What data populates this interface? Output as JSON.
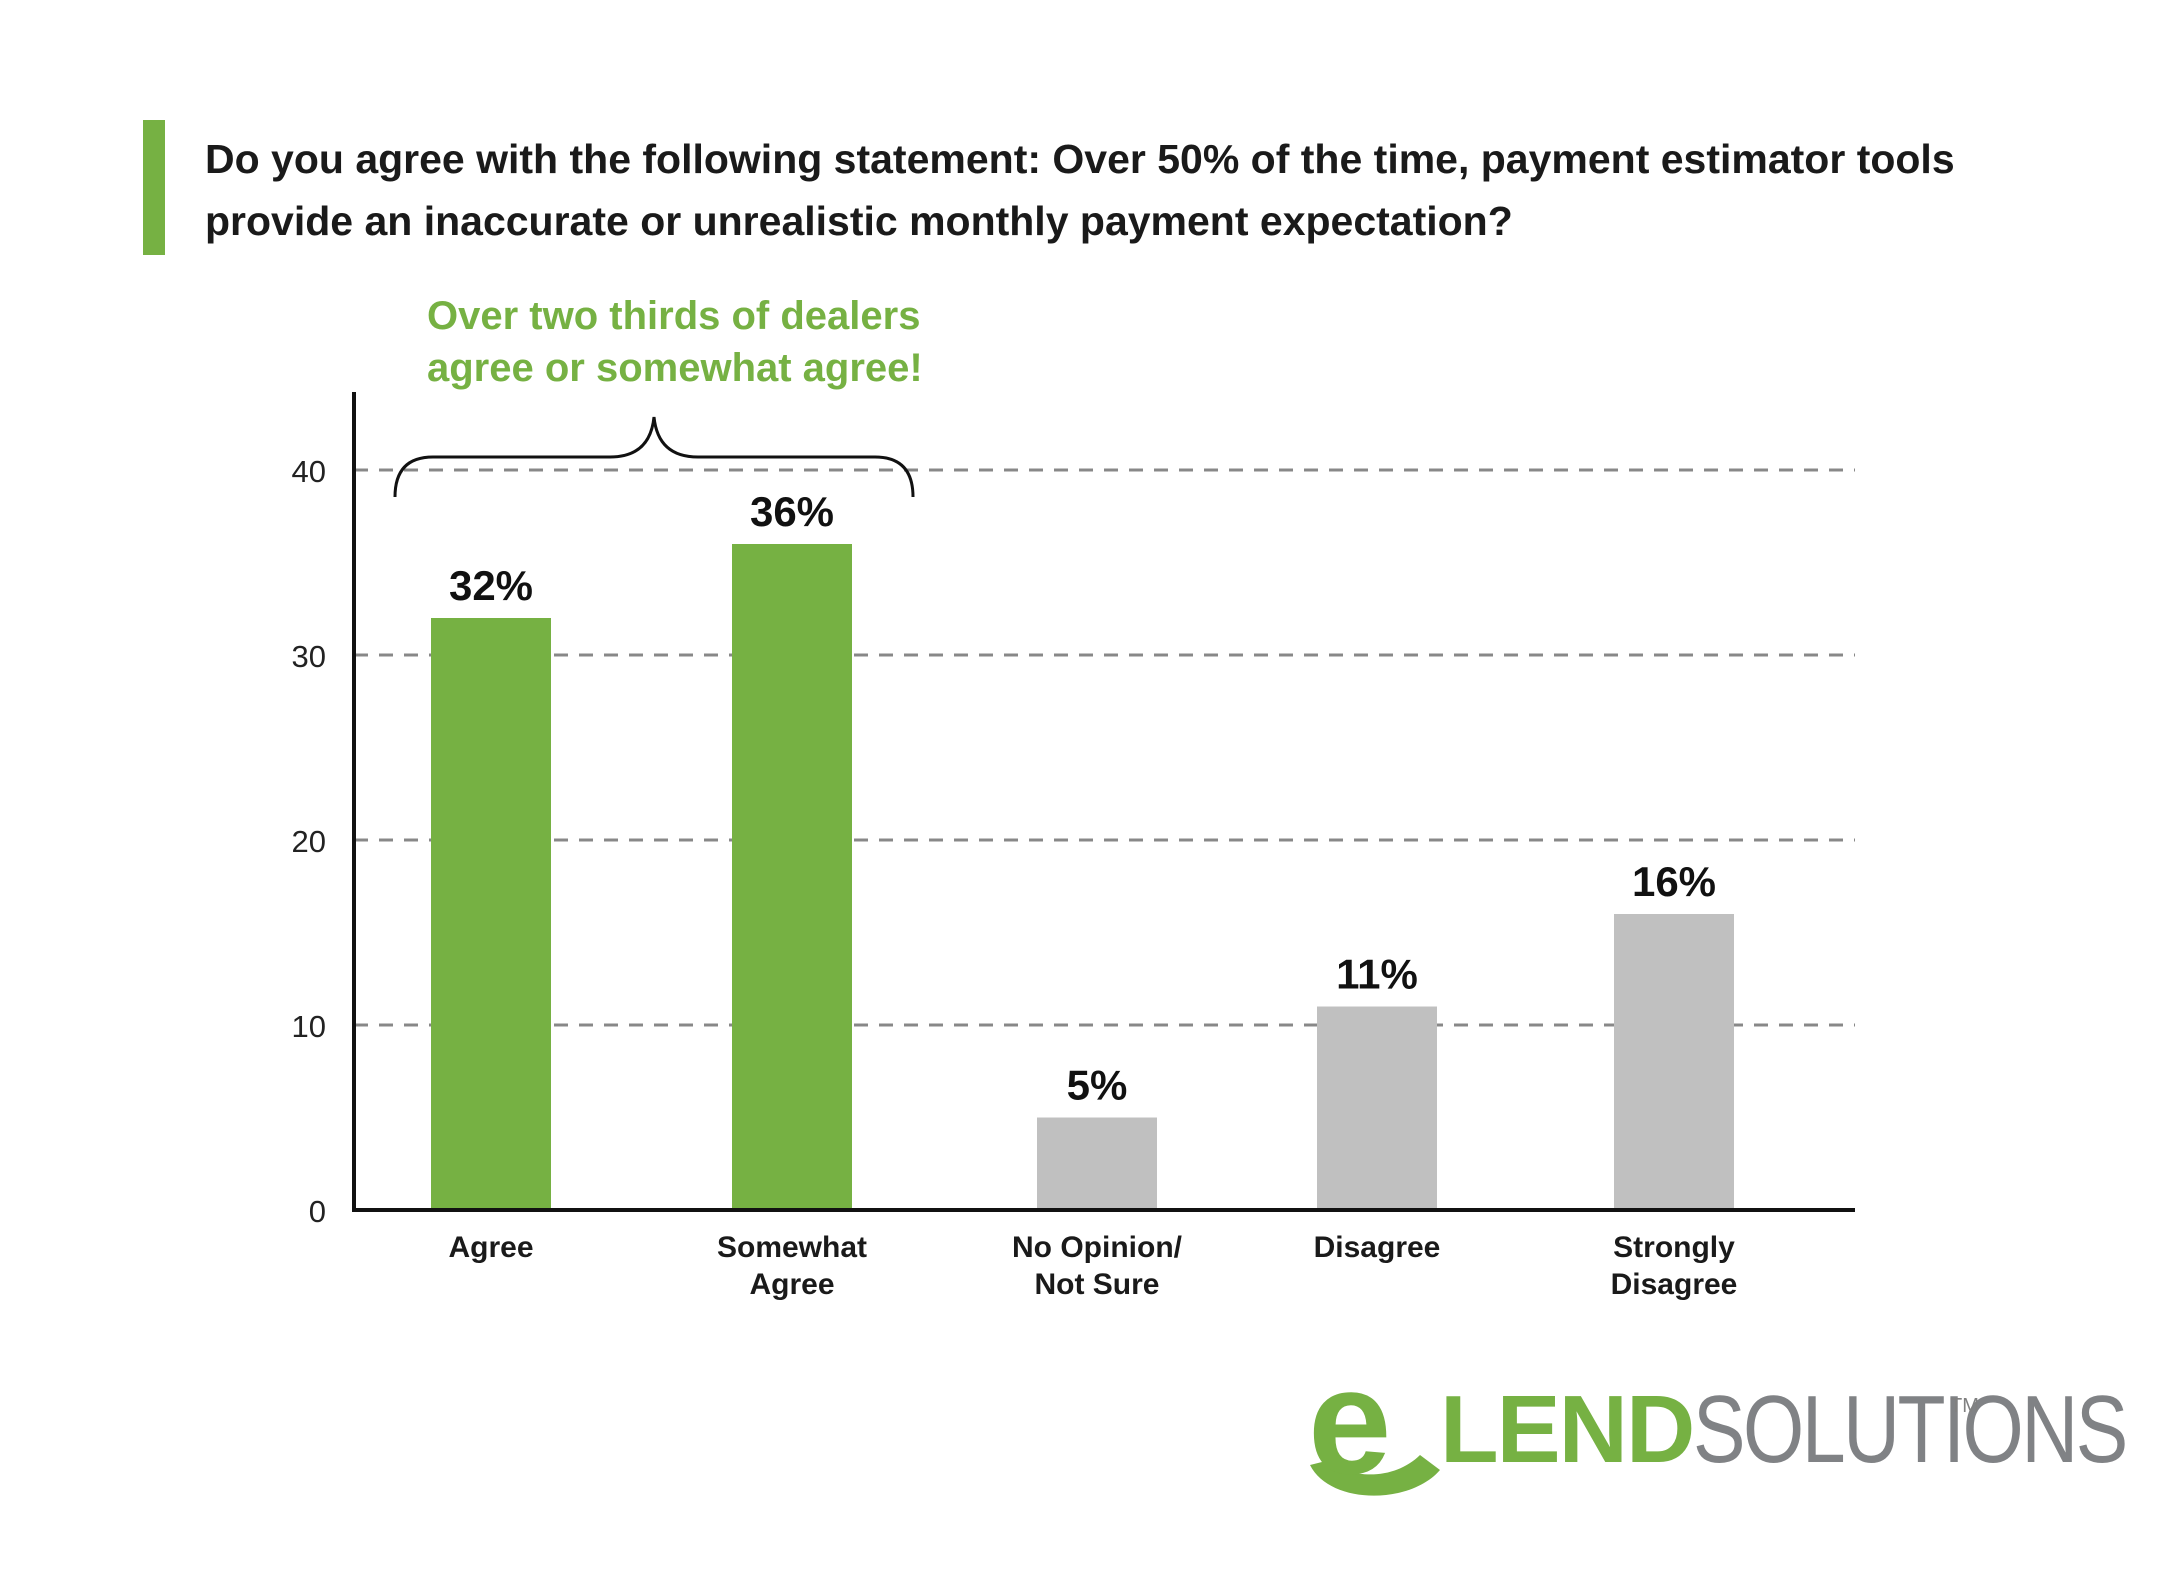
{
  "header": {
    "title": "Do you agree with the following statement: Over 50% of the time, payment estimator tools provide an inaccurate or unrealistic monthly payment expectation?",
    "callout_line1": "Over two thirds of dealers",
    "callout_line2": "agree or somewhat agree!"
  },
  "colors": {
    "accent": "#76b143",
    "agree_bar": "#76b143",
    "other_bar": "#c0c0c0",
    "axis": "#111111",
    "grid": "#888888",
    "logo_gray": "#808285"
  },
  "chart_data": {
    "type": "bar",
    "categories": [
      [
        "Agree"
      ],
      [
        "Somewhat",
        "Agree"
      ],
      [
        "No Opinion/",
        "Not Sure"
      ],
      [
        "Disagree"
      ],
      [
        "Strongly",
        "Disagree"
      ]
    ],
    "values": [
      32,
      36,
      5,
      11,
      16
    ],
    "data_labels": [
      "32%",
      "36%",
      "5%",
      "11%",
      "16%"
    ],
    "highlight": [
      true,
      true,
      false,
      false,
      false
    ],
    "yticks": [
      0,
      10,
      20,
      30,
      40
    ],
    "ylim": [
      0,
      44
    ],
    "grid": "dashed horizontal",
    "annotation": "brace over Agree and Somewhat Agree",
    "xlabel": "",
    "ylabel": ""
  },
  "logo": {
    "letter": "e",
    "lend": "LEND",
    "solutions": "SOLUTIONS",
    "tm": "TM"
  }
}
